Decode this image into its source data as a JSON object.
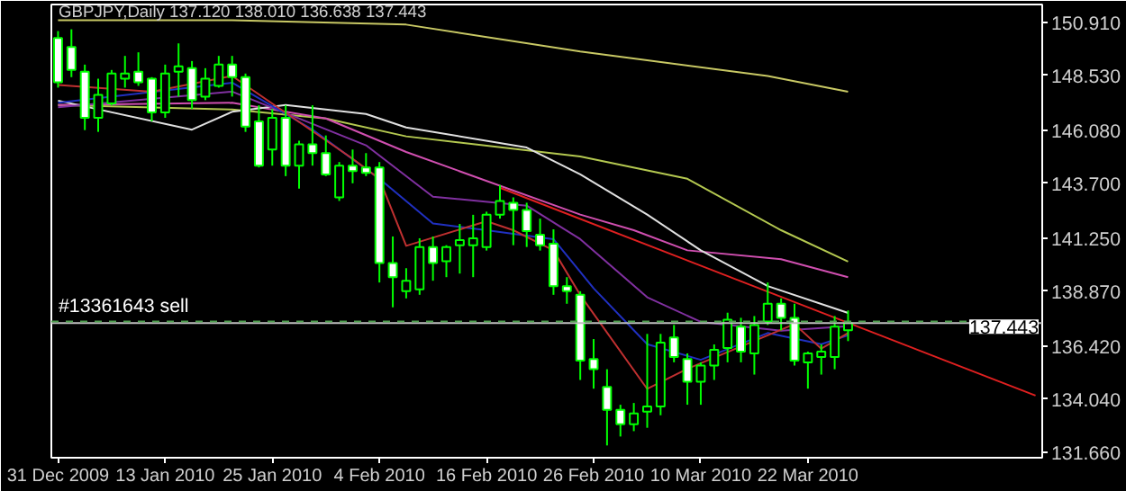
{
  "chart_data": {
    "type": "candlestick",
    "title": "GBPJPY,Daily  137.120 138.010 136.638 137.443",
    "color": "#00ff00",
    "categories": [
      "31 Dec 2009",
      null,
      null,
      null,
      null,
      null,
      null,
      null,
      "13 Jan 2010",
      null,
      null,
      null,
      null,
      null,
      null,
      null,
      "25 Jan 2010",
      null,
      null,
      null,
      null,
      null,
      null,
      null,
      "4 Feb 2010",
      null,
      null,
      null,
      null,
      null,
      null,
      null,
      "16 Feb 2010",
      null,
      null,
      null,
      null,
      null,
      null,
      null,
      "26 Feb 2010",
      null,
      null,
      null,
      null,
      null,
      null,
      null,
      "10 Mar 2010",
      null,
      null,
      null,
      null,
      null,
      null,
      null,
      "22 Mar 2010",
      null,
      null,
      null,
      null,
      null,
      null,
      null,
      null,
      null,
      null,
      null,
      null,
      null,
      null,
      null,
      null,
      null
    ],
    "ohlc": [
      [
        150.2,
        150.51,
        147.98,
        148.22
      ],
      [
        149.8,
        150.59,
        148.45,
        148.77
      ],
      [
        148.69,
        149.01,
        146.08,
        146.63
      ],
      [
        146.63,
        148.38,
        146.0,
        147.66
      ],
      [
        147.27,
        148.77,
        147.19,
        148.61
      ],
      [
        148.38,
        149.4,
        147.98,
        148.61
      ],
      [
        148.69,
        149.56,
        148.06,
        148.22
      ],
      [
        148.38,
        148.45,
        146.47,
        146.87
      ],
      [
        146.87,
        149.01,
        146.63,
        148.61
      ],
      [
        148.69,
        149.96,
        147.58,
        148.93
      ],
      [
        148.85,
        149.17,
        147.03,
        147.42
      ],
      [
        147.58,
        148.85,
        147.42,
        148.38
      ],
      [
        148.06,
        149.4,
        147.98,
        149.01
      ],
      [
        149.01,
        149.4,
        147.58,
        148.45
      ],
      [
        148.45,
        148.61,
        146.0,
        146.24
      ],
      [
        146.47,
        147.19,
        144.41,
        144.49
      ],
      [
        145.21,
        147.03,
        144.49,
        146.63
      ],
      [
        146.63,
        147.19,
        144.02,
        144.49
      ],
      [
        144.49,
        145.6,
        143.46,
        145.44
      ],
      [
        145.44,
        147.19,
        144.49,
        145.05
      ],
      [
        145.05,
        145.84,
        144.02,
        144.1
      ],
      [
        143.07,
        144.65,
        142.91,
        144.49
      ],
      [
        144.49,
        145.21,
        143.7,
        144.25
      ],
      [
        144.41,
        145.05,
        144.02,
        144.17
      ],
      [
        144.41,
        144.65,
        139.26,
        140.13
      ],
      [
        140.13,
        141.32,
        138.15,
        139.5
      ],
      [
        138.87,
        139.9,
        138.55,
        139.34
      ],
      [
        138.95,
        141.24,
        138.71,
        140.85
      ],
      [
        140.85,
        141.32,
        139.34,
        140.13
      ],
      [
        140.21,
        140.93,
        139.5,
        140.85
      ],
      [
        140.93,
        141.88,
        139.66,
        141.16
      ],
      [
        140.93,
        142.29,
        139.5,
        141.24
      ],
      [
        140.85,
        142.43,
        140.69,
        142.29
      ],
      [
        142.29,
        143.62,
        142.12,
        142.91
      ],
      [
        142.83,
        143.07,
        140.93,
        142.51
      ],
      [
        142.51,
        142.83,
        140.85,
        141.56
      ],
      [
        141.4,
        142.12,
        140.69,
        140.93
      ],
      [
        141.0,
        141.64,
        138.71,
        139.1
      ],
      [
        139.1,
        139.5,
        138.31,
        138.87
      ],
      [
        138.71,
        138.87,
        134.9,
        135.77
      ],
      [
        135.84,
        136.73,
        134.51,
        135.38
      ],
      [
        134.59,
        135.38,
        131.97,
        133.56
      ],
      [
        133.56,
        133.79,
        132.37,
        132.92
      ],
      [
        132.92,
        133.87,
        132.61,
        133.4
      ],
      [
        133.48,
        136.96,
        132.76,
        133.71
      ],
      [
        133.71,
        136.96,
        133.32,
        136.57
      ],
      [
        136.8,
        137.36,
        135.69,
        135.93
      ],
      [
        135.84,
        136.09,
        133.79,
        134.82
      ],
      [
        134.82,
        135.69,
        133.79,
        135.54
      ],
      [
        135.54,
        136.49,
        134.9,
        136.25
      ],
      [
        136.33,
        137.91,
        135.69,
        137.6
      ],
      [
        137.28,
        137.68,
        135.69,
        136.17
      ],
      [
        136.09,
        137.76,
        135.14,
        137.36
      ],
      [
        137.52,
        139.26,
        137.36,
        138.31
      ],
      [
        138.31,
        138.55,
        137.12,
        137.68
      ],
      [
        137.68,
        138.31,
        135.54,
        135.77
      ],
      [
        135.69,
        136.17,
        134.51,
        136.09
      ],
      [
        135.93,
        136.49,
        135.14,
        136.17
      ],
      [
        135.93,
        137.76,
        135.38,
        137.28
      ],
      [
        137.12,
        138.01,
        136.638,
        137.443
      ],
      null,
      null,
      null,
      null,
      null,
      null,
      null,
      null,
      null,
      null,
      null,
      null,
      null,
      null
    ],
    "series": [
      {
        "type": "line",
        "color": "#c8c864",
        "values": [
          151.0,
          null,
          null,
          null,
          null,
          null,
          null,
          null,
          null,
          null,
          null,
          null,
          null,
          151.0,
          null,
          null,
          null,
          null,
          null,
          null,
          null,
          null,
          null,
          null,
          null,
          null,
          150.8,
          null,
          null,
          null,
          null,
          null,
          null,
          null,
          null,
          null,
          null,
          null,
          null,
          149.6,
          null,
          null,
          null,
          null,
          null,
          null,
          null,
          null,
          null,
          null,
          null,
          null,
          null,
          148.5,
          null,
          null,
          null,
          null,
          null,
          147.8,
          null,
          null,
          null,
          null,
          null,
          null,
          null,
          null,
          null,
          null,
          null,
          null,
          null,
          null
        ]
      },
      {
        "type": "line",
        "color": "#b4c850",
        "values": [
          147.2,
          null,
          null,
          null,
          null,
          null,
          null,
          null,
          null,
          null,
          null,
          null,
          null,
          147.0,
          null,
          null,
          null,
          null,
          null,
          null,
          146.6,
          null,
          null,
          null,
          null,
          null,
          145.8,
          null,
          null,
          null,
          null,
          null,
          null,
          null,
          null,
          null,
          null,
          null,
          null,
          144.9,
          null,
          null,
          null,
          null,
          null,
          null,
          null,
          143.9,
          null,
          null,
          null,
          null,
          null,
          null,
          141.6,
          null,
          null,
          null,
          null,
          140.2,
          null,
          null,
          null,
          null,
          null,
          null,
          null,
          null,
          null,
          null,
          null,
          null,
          null,
          null
        ]
      },
      {
        "type": "line",
        "color": "#d04fb0",
        "values": [
          147.2,
          null,
          null,
          null,
          null,
          null,
          null,
          null,
          null,
          null,
          null,
          null,
          null,
          147.3,
          null,
          null,
          null,
          null,
          null,
          null,
          146.6,
          null,
          null,
          null,
          null,
          null,
          145.1,
          null,
          null,
          null,
          null,
          null,
          null,
          null,
          null,
          null,
          null,
          null,
          null,
          142.3,
          null,
          null,
          null,
          141.6,
          null,
          null,
          null,
          140.7,
          null,
          null,
          null,
          null,
          null,
          null,
          140.3,
          null,
          null,
          null,
          null,
          139.5,
          null,
          null,
          null,
          null,
          null,
          null,
          null,
          null,
          null,
          null,
          null,
          null,
          null,
          null
        ]
      },
      {
        "type": "line",
        "color": "#e0e0e0",
        "values": [
          147.4,
          null,
          null,
          null,
          null,
          null,
          null,
          null,
          null,
          null,
          146.1,
          null,
          null,
          146.9,
          null,
          null,
          null,
          147.2,
          null,
          null,
          null,
          null,
          null,
          146.8,
          null,
          null,
          146.2,
          null,
          null,
          null,
          null,
          null,
          null,
          null,
          null,
          145.3,
          null,
          null,
          null,
          144.1,
          null,
          null,
          null,
          null,
          142.3,
          null,
          null,
          null,
          140.7,
          null,
          null,
          null,
          null,
          139.1,
          null,
          null,
          null,
          null,
          138.1,
          137.9,
          null,
          null,
          null,
          null,
          null,
          null,
          null,
          null,
          null,
          null,
          null,
          null,
          null,
          null
        ]
      },
      {
        "type": "line",
        "color": "#8030a0",
        "values": [
          147.1,
          null,
          null,
          null,
          null,
          null,
          null,
          null,
          null,
          null,
          null,
          null,
          null,
          147.8,
          null,
          null,
          null,
          null,
          null,
          null,
          null,
          null,
          null,
          145.4,
          null,
          null,
          null,
          null,
          143.1,
          null,
          null,
          null,
          null,
          null,
          null,
          142.7,
          null,
          null,
          null,
          141.2,
          null,
          null,
          null,
          null,
          138.6,
          null,
          null,
          null,
          137.5,
          null,
          null,
          null,
          null,
          null,
          137.1,
          null,
          null,
          null,
          null,
          137.3,
          null,
          null,
          null,
          null,
          null,
          null,
          null,
          null,
          null,
          null,
          null,
          null,
          null,
          null
        ]
      },
      {
        "type": "line",
        "color": "#2030c0",
        "values": [
          147.3,
          null,
          null,
          null,
          null,
          null,
          null,
          null,
          null,
          null,
          null,
          null,
          null,
          148.2,
          null,
          null,
          null,
          null,
          null,
          146.1,
          null,
          null,
          null,
          null,
          143.9,
          null,
          null,
          null,
          141.9,
          null,
          null,
          null,
          141.6,
          null,
          null,
          null,
          null,
          141.2,
          null,
          null,
          139.0,
          null,
          null,
          null,
          136.5,
          null,
          null,
          null,
          135.8,
          null,
          null,
          null,
          null,
          137.0,
          null,
          null,
          null,
          136.5,
          null,
          136.9,
          null,
          null,
          null,
          null,
          null,
          null,
          null,
          null,
          null,
          null,
          null,
          null,
          null,
          null
        ]
      },
      {
        "type": "line",
        "color": "#c03030",
        "values": [
          148.1,
          null,
          null,
          null,
          null,
          null,
          null,
          147.8,
          null,
          null,
          null,
          null,
          null,
          148.5,
          null,
          null,
          null,
          null,
          null,
          null,
          null,
          null,
          144.8,
          null,
          143.9,
          null,
          140.9,
          null,
          null,
          null,
          null,
          null,
          142.0,
          null,
          141.6,
          null,
          null,
          140.7,
          null,
          138.7,
          null,
          null,
          null,
          null,
          134.5,
          null,
          null,
          135.4,
          null,
          null,
          null,
          null,
          null,
          136.9,
          null,
          137.4,
          null,
          136.3,
          null,
          137.0,
          null,
          null,
          null,
          null,
          null,
          null,
          null,
          null,
          null,
          null,
          null,
          null,
          null,
          null
        ]
      },
      {
        "type": "line",
        "color": "#e02020",
        "values": [
          null,
          null,
          null,
          null,
          null,
          null,
          null,
          null,
          null,
          null,
          null,
          null,
          null,
          null,
          null,
          null,
          null,
          null,
          null,
          null,
          null,
          null,
          null,
          null,
          null,
          null,
          null,
          null,
          null,
          null,
          null,
          null,
          null,
          143.5,
          null,
          null,
          null,
          null,
          null,
          null,
          null,
          null,
          null,
          null,
          null,
          null,
          null,
          null,
          null,
          null,
          null,
          null,
          null,
          null,
          null,
          null,
          null,
          null,
          null,
          null,
          null,
          null,
          null,
          null,
          null,
          null,
          null,
          null,
          null,
          null,
          null,
          null,
          null,
          134.2
        ]
      }
    ],
    "ylim": [
      131.42,
      151.7
    ],
    "yticks": [
      {
        "value": 131.66,
        "label": "131.660"
      },
      {
        "value": 134.04,
        "label": "134.040"
      },
      {
        "value": 136.42,
        "label": "136.420"
      },
      {
        "value": 138.87,
        "label": "138.870"
      },
      {
        "value": 141.25,
        "label": "141.250"
      },
      {
        "value": 143.7,
        "label": "143.700"
      },
      {
        "value": 146.08,
        "label": "146.080"
      },
      {
        "value": 148.53,
        "label": "148.530"
      },
      {
        "value": 150.91,
        "label": "150.910"
      }
    ],
    "ref_lines": [
      {
        "axis": "y",
        "value": 137.443,
        "label": "137.443",
        "color": "#c0c0c0",
        "line_style": "solid"
      },
      {
        "axis": "y",
        "value": 137.52,
        "label": "#13361643 sell",
        "color": "#50a050",
        "line_style": "dashed"
      }
    ]
  }
}
